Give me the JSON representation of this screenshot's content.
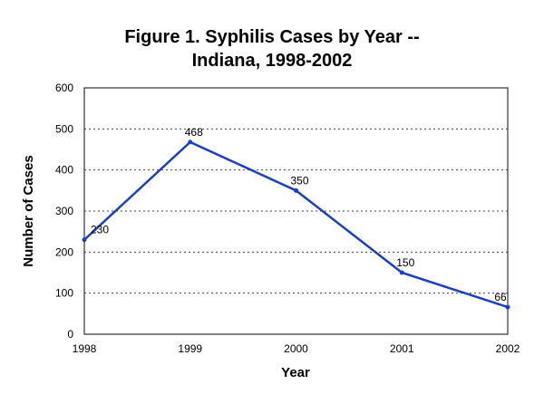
{
  "chart_data": {
    "type": "line",
    "title_line1": "Figure 1.  Syphilis Cases by Year --",
    "title_line2": "Indiana, 1998-2002",
    "xlabel": "Year",
    "ylabel": "Number of Cases",
    "categories": [
      "1998",
      "1999",
      "2000",
      "2001",
      "2002"
    ],
    "series": [
      {
        "name": "Syphilis Cases",
        "values": [
          230,
          468,
          350,
          150,
          66
        ]
      }
    ],
    "data_labels": [
      "230",
      "468",
      "350",
      "150",
      "66"
    ],
    "ylim": [
      0,
      600
    ],
    "yticks": [
      "0",
      "100",
      "200",
      "300",
      "400",
      "500",
      "600"
    ],
    "grid": true,
    "legend": "none",
    "line_color": "#1a3fc8"
  }
}
